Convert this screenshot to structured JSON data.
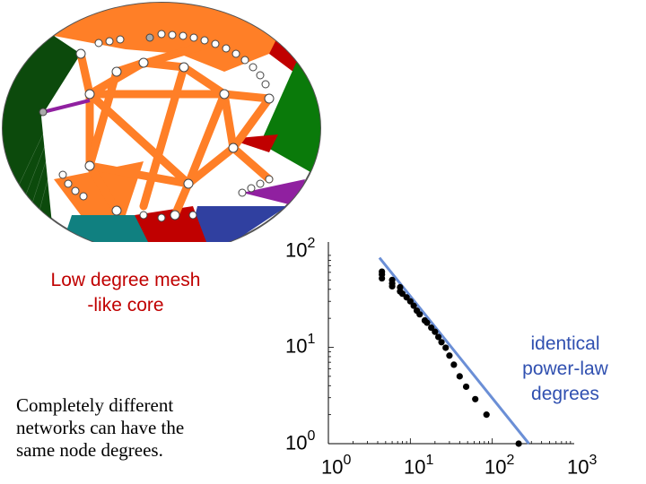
{
  "captions": {
    "mesh_line1": "Low degree mesh",
    "mesh_line2": "-like core",
    "identical_line1": "identical",
    "identical_line2": "power-law",
    "identical_line3": "degrees",
    "completely_line1": "Completely different",
    "completely_line2": "networks can have the",
    "completely_line3": "same node degrees."
  },
  "colors": {
    "core_links": "#ff7f27",
    "red_fans": "#c00000",
    "green_fan": "#0a7a0a",
    "dark_green_fan": "#0c4a0c",
    "teal_fan": "#108080",
    "blue_fan": "#3040a0",
    "purple_fan": "#9020a0",
    "fit_line": "#6b8fd6",
    "points": "#000000"
  },
  "chart_data": {
    "type": "scatter",
    "title": "",
    "xscale": "log",
    "yscale": "log",
    "xlim": [
      1,
      1000
    ],
    "ylim": [
      1,
      100
    ],
    "x_ticks": [
      {
        "base": "10",
        "exp": "0"
      },
      {
        "base": "10",
        "exp": "1"
      },
      {
        "base": "10",
        "exp": "2"
      },
      {
        "base": "10",
        "exp": "3"
      }
    ],
    "y_ticks": [
      {
        "base": "10",
        "exp": "0"
      },
      {
        "base": "10",
        "exp": "1"
      },
      {
        "base": "10",
        "exp": "2"
      }
    ],
    "points": [
      [
        4.5,
        61
      ],
      [
        4.5,
        57
      ],
      [
        4.5,
        52
      ],
      [
        6,
        50
      ],
      [
        6,
        46
      ],
      [
        6,
        43
      ],
      [
        7.5,
        42
      ],
      [
        7.5,
        38
      ],
      [
        8,
        36
      ],
      [
        9,
        33
      ],
      [
        10,
        30
      ],
      [
        11,
        27
      ],
      [
        12,
        24
      ],
      [
        13,
        22
      ],
      [
        15,
        19
      ],
      [
        16,
        18
      ],
      [
        18,
        16
      ],
      [
        20,
        14.5
      ],
      [
        22,
        12.8
      ],
      [
        24,
        11.3
      ],
      [
        27,
        9.9
      ],
      [
        30,
        8.2
      ],
      [
        34,
        6.6
      ],
      [
        40,
        5.0
      ],
      [
        48,
        3.9
      ],
      [
        62,
        2.9
      ],
      [
        85,
        2.0
      ],
      [
        210,
        1.0
      ]
    ],
    "fit_line": {
      "label": "power-law",
      "x": [
        4.2,
        280
      ],
      "y": [
        85,
        1.0
      ]
    }
  }
}
